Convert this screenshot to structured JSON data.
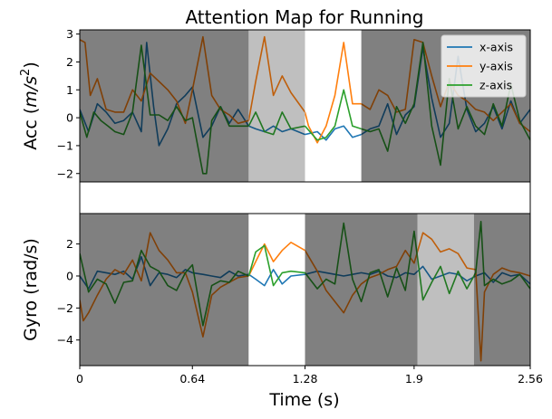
{
  "figure": {
    "title": "Attention Map for Running",
    "xlabel": "Time (s)"
  },
  "chart_data": [
    {
      "type": "line",
      "panel": "accelerometer",
      "title": "Attention Map for Running",
      "ylabel_prefix": "Acc (",
      "ylabel_unit_m": "m",
      "ylabel_unit_s": "s",
      "ylabel_exp": "2",
      "ylabel_suffix": ")",
      "xlim": [
        0,
        2.56
      ],
      "ylim": [
        -2.3,
        3.15
      ],
      "xticks": [
        0,
        0.64,
        1.28,
        1.9,
        2.56
      ],
      "xtick_labels": [],
      "yticks": [
        -2,
        -1,
        0,
        1,
        2,
        3
      ],
      "ytick_labels": [
        "−2",
        "−1",
        "0",
        "1",
        "2",
        "3"
      ],
      "legend": {
        "placement": "top-right",
        "entries": [
          "x-axis",
          "y-axis",
          "z-axis"
        ]
      },
      "attention_segments": [
        {
          "start": 0.0,
          "end": 0.96,
          "weight": "high",
          "color": "#808080"
        },
        {
          "start": 0.96,
          "end": 1.28,
          "weight": "medium",
          "color": "#bfbfbf"
        },
        {
          "start": 1.28,
          "end": 1.6,
          "weight": "low",
          "color": "#ffffff"
        },
        {
          "start": 1.6,
          "end": 2.56,
          "weight": "high",
          "color": "#808080"
        }
      ],
      "series": [
        {
          "name": "x-axis",
          "color": "#1f77b4",
          "x": [
            0,
            0.05,
            0.1,
            0.15,
            0.2,
            0.25,
            0.3,
            0.35,
            0.38,
            0.42,
            0.45,
            0.5,
            0.55,
            0.6,
            0.64,
            0.7,
            0.75,
            0.8,
            0.85,
            0.9,
            0.96,
            1.0,
            1.05,
            1.1,
            1.15,
            1.2,
            1.28,
            1.35,
            1.4,
            1.45,
            1.5,
            1.55,
            1.6,
            1.65,
            1.7,
            1.75,
            1.8,
            1.85,
            1.9,
            1.95,
            2.0,
            2.05,
            2.1,
            2.15,
            2.2,
            2.25,
            2.3,
            2.35,
            2.4,
            2.45,
            2.5,
            2.56
          ],
          "y": [
            0.3,
            -0.5,
            0.5,
            0.2,
            -0.2,
            -0.1,
            0.2,
            -0.5,
            2.7,
            0.4,
            -1.0,
            -0.4,
            0.5,
            0.8,
            1.1,
            -0.7,
            -0.3,
            0.4,
            -0.2,
            0.3,
            -0.3,
            -0.4,
            -0.5,
            -0.3,
            -0.5,
            -0.4,
            -0.6,
            -0.5,
            -0.8,
            -0.4,
            -0.3,
            -0.7,
            -0.6,
            -0.4,
            -0.3,
            0.5,
            -0.6,
            0.1,
            0.4,
            2.5,
            0.7,
            -0.7,
            -0.2,
            2.2,
            0.3,
            -0.5,
            -0.2,
            0.4,
            -0.4,
            0.6,
            -0.2,
            0.3
          ]
        },
        {
          "name": "y-axis",
          "color": "#ff7f0e",
          "x": [
            0,
            0.03,
            0.06,
            0.1,
            0.15,
            0.2,
            0.25,
            0.3,
            0.35,
            0.4,
            0.45,
            0.5,
            0.55,
            0.6,
            0.64,
            0.7,
            0.75,
            0.8,
            0.85,
            0.9,
            0.96,
            1.0,
            1.05,
            1.1,
            1.15,
            1.2,
            1.28,
            1.3,
            1.35,
            1.4,
            1.45,
            1.5,
            1.55,
            1.6,
            1.65,
            1.7,
            1.75,
            1.8,
            1.85,
            1.9,
            1.95,
            2.0,
            2.05,
            2.1,
            2.15,
            2.2,
            2.25,
            2.3,
            2.35,
            2.4,
            2.45,
            2.5,
            2.56
          ],
          "y": [
            2.8,
            2.7,
            0.8,
            1.4,
            0.3,
            0.2,
            0.2,
            1.0,
            0.6,
            1.6,
            1.3,
            1.0,
            0.6,
            -0.2,
            1.0,
            2.9,
            0.8,
            0.3,
            0.1,
            -0.2,
            -0.1,
            1.3,
            2.9,
            0.8,
            1.5,
            0.9,
            0.2,
            -0.3,
            -0.9,
            -0.3,
            0.8,
            2.7,
            0.5,
            0.5,
            0.3,
            1.0,
            0.8,
            0.2,
            0.3,
            2.8,
            2.7,
            1.5,
            0.4,
            1.3,
            0.8,
            0.6,
            0.3,
            0.2,
            -0.1,
            0.2,
            0.5,
            -0.2,
            -0.5
          ]
        },
        {
          "name": "z-axis",
          "color": "#2ca02c",
          "x": [
            0,
            0.04,
            0.08,
            0.12,
            0.16,
            0.2,
            0.25,
            0.3,
            0.35,
            0.4,
            0.45,
            0.5,
            0.55,
            0.6,
            0.64,
            0.7,
            0.72,
            0.75,
            0.8,
            0.85,
            0.9,
            0.96,
            1.0,
            1.05,
            1.1,
            1.15,
            1.2,
            1.28,
            1.35,
            1.4,
            1.45,
            1.5,
            1.55,
            1.6,
            1.65,
            1.7,
            1.75,
            1.8,
            1.85,
            1.9,
            1.95,
            2.0,
            2.05,
            2.1,
            2.15,
            2.2,
            2.25,
            2.3,
            2.35,
            2.4,
            2.45,
            2.5,
            2.56
          ],
          "y": [
            0.2,
            -0.7,
            0.2,
            -0.1,
            -0.3,
            -0.5,
            -0.6,
            0.2,
            2.6,
            0.1,
            0.1,
            -0.1,
            0.4,
            -0.1,
            0.0,
            -2.0,
            -2.0,
            -0.1,
            0.4,
            -0.3,
            -0.3,
            -0.3,
            0.2,
            -0.5,
            -0.6,
            0.2,
            -0.4,
            -0.3,
            -0.8,
            -0.7,
            -0.3,
            1.0,
            -0.3,
            -0.4,
            -0.5,
            -0.4,
            -1.2,
            0.4,
            -0.2,
            0.5,
            2.7,
            -0.3,
            -1.7,
            1.4,
            -0.4,
            0.4,
            -0.3,
            -0.6,
            0.5,
            -0.3,
            1.2,
            -0.1,
            -0.8
          ]
        }
      ]
    },
    {
      "type": "line",
      "panel": "gyroscope",
      "ylabel": "Gyro (rad/s)",
      "xlabel": "Time (s)",
      "xlim": [
        0,
        2.56
      ],
      "ylim": [
        -5.6,
        3.9
      ],
      "xticks": [
        0,
        0.64,
        1.28,
        1.9,
        2.56
      ],
      "xtick_labels": [
        "0",
        "0.64",
        "1.28",
        "1.9",
        "2.56"
      ],
      "yticks": [
        -4,
        -2,
        0,
        2
      ],
      "ytick_labels": [
        "−4",
        "−2",
        "0",
        "2"
      ],
      "attention_segments": [
        {
          "start": 0.0,
          "end": 0.96,
          "weight": "high",
          "color": "#808080"
        },
        {
          "start": 0.96,
          "end": 1.28,
          "weight": "low",
          "color": "#ffffff"
        },
        {
          "start": 1.28,
          "end": 1.92,
          "weight": "high",
          "color": "#808080"
        },
        {
          "start": 1.92,
          "end": 2.24,
          "weight": "medium",
          "color": "#bfbfbf"
        },
        {
          "start": 2.24,
          "end": 2.56,
          "weight": "high",
          "color": "#808080"
        }
      ],
      "series": [
        {
          "name": "x-axis",
          "color": "#1f77b4",
          "x": [
            0,
            0.05,
            0.1,
            0.15,
            0.2,
            0.25,
            0.3,
            0.35,
            0.4,
            0.45,
            0.5,
            0.55,
            0.6,
            0.64,
            0.7,
            0.75,
            0.8,
            0.85,
            0.9,
            0.96,
            1.0,
            1.05,
            1.1,
            1.15,
            1.2,
            1.28,
            1.35,
            1.4,
            1.45,
            1.5,
            1.55,
            1.6,
            1.65,
            1.7,
            1.75,
            1.8,
            1.85,
            1.9,
            1.95,
            2.0,
            2.05,
            2.1,
            2.15,
            2.2,
            2.25,
            2.3,
            2.35,
            2.4,
            2.45,
            2.5,
            2.56
          ],
          "y": [
            0.0,
            -0.8,
            0.3,
            0.2,
            0.1,
            0.3,
            -0.2,
            1.2,
            -0.6,
            0.2,
            0.1,
            -0.1,
            0.4,
            0.2,
            0.1,
            0.0,
            -0.1,
            0.3,
            0.0,
            0.1,
            -0.2,
            -0.6,
            0.4,
            -0.5,
            0.0,
            0.1,
            0.3,
            0.2,
            0.1,
            0.0,
            0.1,
            0.2,
            0.1,
            0.3,
            0.0,
            -0.1,
            0.2,
            0.1,
            0.6,
            -0.2,
            0.0,
            0.2,
            0.1,
            -0.3,
            0.0,
            0.2,
            -0.4,
            0.2,
            0.0,
            0.1,
            -0.5
          ]
        },
        {
          "name": "y-axis",
          "color": "#ff7f0e",
          "x": [
            0,
            0.02,
            0.05,
            0.1,
            0.15,
            0.2,
            0.25,
            0.3,
            0.35,
            0.4,
            0.45,
            0.5,
            0.55,
            0.6,
            0.64,
            0.7,
            0.75,
            0.8,
            0.85,
            0.9,
            0.96,
            1.0,
            1.05,
            1.1,
            1.15,
            1.2,
            1.28,
            1.35,
            1.4,
            1.45,
            1.5,
            1.55,
            1.6,
            1.65,
            1.7,
            1.75,
            1.8,
            1.85,
            1.9,
            1.95,
            2.0,
            2.05,
            2.1,
            2.15,
            2.2,
            2.25,
            2.28,
            2.3,
            2.35,
            2.4,
            2.45,
            2.5,
            2.56
          ],
          "y": [
            -1.5,
            -2.8,
            -2.3,
            -1.2,
            -0.2,
            0.4,
            0.1,
            1.0,
            -0.3,
            2.7,
            1.6,
            1.0,
            0.2,
            0.2,
            -1.0,
            -3.8,
            -1.2,
            -0.7,
            -0.4,
            -0.1,
            0.0,
            0.9,
            2.0,
            0.9,
            1.6,
            2.1,
            1.6,
            0.3,
            -0.9,
            -1.6,
            -2.3,
            -1.2,
            -0.5,
            -0.1,
            0.1,
            0.4,
            0.6,
            1.6,
            0.8,
            2.7,
            2.3,
            1.5,
            1.7,
            1.4,
            0.5,
            0.4,
            -5.3,
            -1.0,
            0.1,
            0.5,
            0.3,
            0.2,
            0.0
          ]
        },
        {
          "name": "z-axis",
          "color": "#2ca02c",
          "x": [
            0,
            0.05,
            0.1,
            0.15,
            0.2,
            0.25,
            0.3,
            0.35,
            0.4,
            0.45,
            0.5,
            0.55,
            0.6,
            0.64,
            0.7,
            0.75,
            0.8,
            0.85,
            0.9,
            0.96,
            1.0,
            1.05,
            1.1,
            1.15,
            1.2,
            1.28,
            1.35,
            1.4,
            1.45,
            1.5,
            1.55,
            1.6,
            1.65,
            1.7,
            1.75,
            1.8,
            1.85,
            1.9,
            1.95,
            2.0,
            2.05,
            2.1,
            2.15,
            2.2,
            2.25,
            2.28,
            2.3,
            2.35,
            2.4,
            2.45,
            2.5,
            2.56
          ],
          "y": [
            1.4,
            -1.0,
            -0.2,
            -0.5,
            -1.7,
            -0.4,
            -0.3,
            1.6,
            0.6,
            0.3,
            -0.6,
            -0.9,
            0.2,
            0.7,
            -3.1,
            -0.6,
            -0.3,
            -0.4,
            0.3,
            0.0,
            1.5,
            1.9,
            -0.6,
            0.2,
            0.3,
            0.2,
            -0.8,
            -0.2,
            -0.5,
            3.3,
            -0.2,
            -1.6,
            0.2,
            0.4,
            -1.3,
            0.5,
            -0.9,
            2.8,
            -1.5,
            -0.4,
            0.6,
            -1.1,
            0.3,
            -0.8,
            0.2,
            3.4,
            -0.6,
            -0.2,
            -0.5,
            -0.3,
            0.1,
            -0.8
          ]
        }
      ]
    }
  ]
}
